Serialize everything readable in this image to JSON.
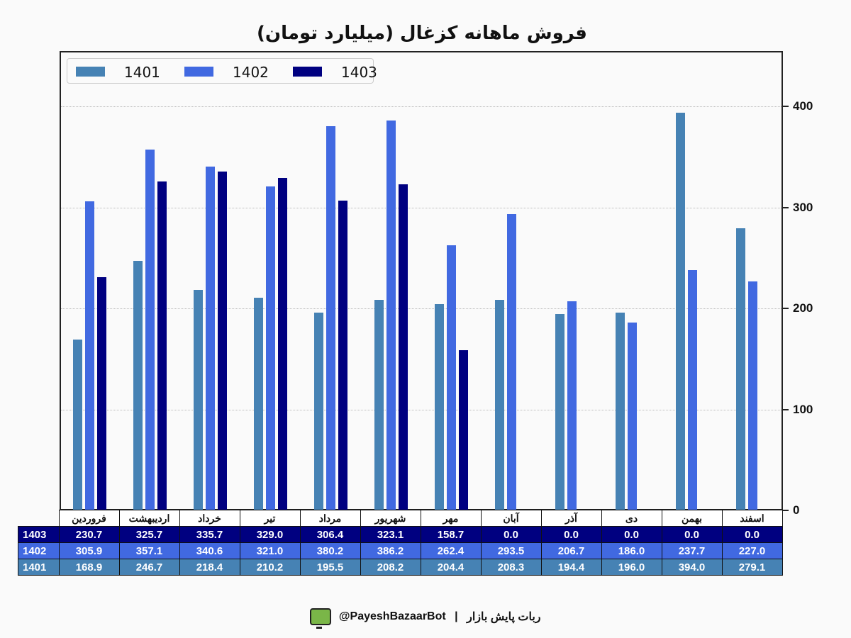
{
  "title": "فروش ماهانه کزغال (میلیارد تومان)",
  "colors": {
    "1401": "#4682b4",
    "1402": "#4169e1",
    "1403": "#000080"
  },
  "legend": [
    {
      "label": "1401",
      "color": "#4682b4"
    },
    {
      "label": "1402",
      "color": "#4169e1"
    },
    {
      "label": "1403",
      "color": "#000080"
    }
  ],
  "y_axis": {
    "ticks": [
      "0",
      "100",
      "200",
      "300",
      "400"
    ]
  },
  "table": {
    "months": [
      "فروردین",
      "اردیبهشت",
      "خرداد",
      "تیر",
      "مرداد",
      "شهریور",
      "مهر",
      "آبان",
      "آذر",
      "دی",
      "بهمن",
      "اسفند"
    ],
    "rows": [
      {
        "label": "1403",
        "values": [
          "230.7",
          "325.7",
          "335.7",
          "329.0",
          "306.4",
          "323.1",
          "158.7",
          "0.0",
          "0.0",
          "0.0",
          "0.0",
          "0.0"
        ]
      },
      {
        "label": "1402",
        "values": [
          "305.9",
          "357.1",
          "340.6",
          "321.0",
          "380.2",
          "386.2",
          "262.4",
          "293.5",
          "206.7",
          "186.0",
          "237.7",
          "227.0"
        ]
      },
      {
        "label": "1401",
        "values": [
          "168.9",
          "246.7",
          "218.4",
          "210.2",
          "195.5",
          "208.2",
          "204.4",
          "208.3",
          "194.4",
          "196.0",
          "394.0",
          "279.1"
        ]
      }
    ]
  },
  "footer": {
    "brand": "ربات پایش بازار",
    "separator": "|",
    "handle": "@PayeshBazaarBot"
  },
  "chart_data": {
    "type": "bar",
    "title": "فروش ماهانه کزغال (میلیارد تومان)",
    "xlabel": "",
    "ylabel": "",
    "ylim": [
      0,
      450
    ],
    "y_ticks": [
      0,
      100,
      200,
      300,
      400
    ],
    "y_axis_position": "right",
    "grid": true,
    "legend_position": "upper left",
    "categories": [
      "فروردین",
      "اردیبهشت",
      "خرداد",
      "تیر",
      "مرداد",
      "شهریور",
      "مهر",
      "آبان",
      "آذر",
      "دی",
      "بهمن",
      "اسفند"
    ],
    "series": [
      {
        "name": "1401",
        "color": "#4682b4",
        "values": [
          168.9,
          246.7,
          218.4,
          210.2,
          195.5,
          208.2,
          204.4,
          208.3,
          194.4,
          196.0,
          394.0,
          279.1
        ]
      },
      {
        "name": "1402",
        "color": "#4169e1",
        "values": [
          305.9,
          357.1,
          340.6,
          321.0,
          380.2,
          386.2,
          262.4,
          293.5,
          206.7,
          186.0,
          237.7,
          227.0
        ]
      },
      {
        "name": "1403",
        "color": "#000080",
        "values": [
          230.7,
          325.7,
          335.7,
          329.0,
          306.4,
          323.1,
          158.7,
          0.0,
          0.0,
          0.0,
          0.0,
          0.0
        ]
      }
    ]
  }
}
